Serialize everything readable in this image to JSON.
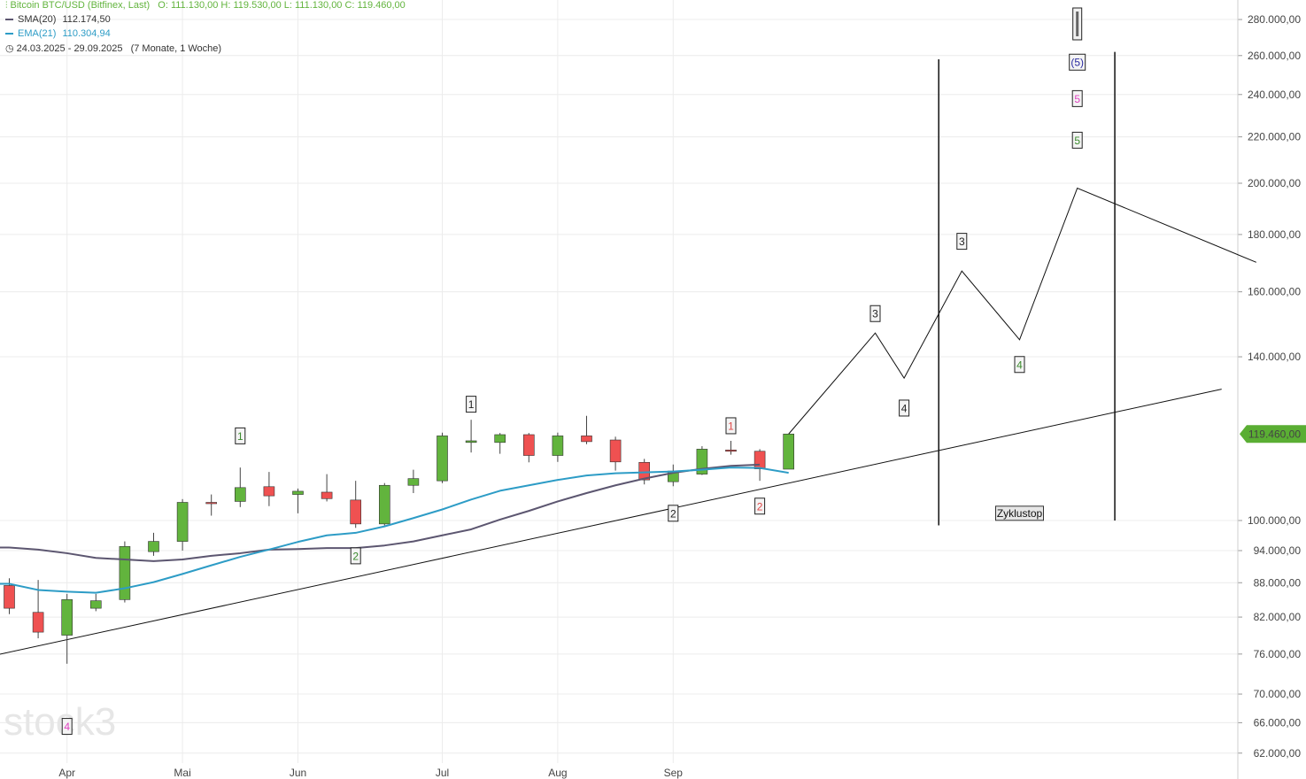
{
  "header": {
    "instrument": "Bitcoin BTC/USD (Bitfinex, Last)",
    "ohlc": "O: 111.130,00   H: 119.530,00   L: 111.130,00   C: 119.460,00",
    "sma_label": "SMA(20)",
    "sma_value": "112.174,50",
    "ema_label": "EMA(21)",
    "ema_value": "110.304,94",
    "period": "24.03.2025 - 29.09.2025",
    "period_note": "(7 Monate, 1 Woche)"
  },
  "colors": {
    "up": "#62b43d",
    "down": "#ef5151",
    "sma": "#5c5670",
    "ema": "#2d9cc6",
    "instrument": "#62b43d",
    "grid": "#ececec",
    "price_tag": "#5aae33"
  },
  "watermark": "stock3",
  "chart_data": {
    "type": "candlestick",
    "scale": "log",
    "ylim": [
      58000,
      300000
    ],
    "y_ticks": [
      62000,
      66000,
      70000,
      76000,
      82000,
      88000,
      94000,
      100000,
      140000,
      160000,
      180000,
      200000,
      220000,
      240000,
      260000,
      280000
    ],
    "y_tick_labels": [
      "62.000,00",
      "66.000,00",
      "70.000,00",
      "76.000,00",
      "82.000,00",
      "88.000,00",
      "94.000,00",
      "100.000,00",
      "140.000,00",
      "160.000,00",
      "180.000,00",
      "200.000,00",
      "220.000,00",
      "240.000,00",
      "260.000,00",
      "280.000,00"
    ],
    "x_labels": [
      {
        "label": "Apr",
        "bar": 2
      },
      {
        "label": "Mai",
        "bar": 6
      },
      {
        "label": "Jun",
        "bar": 10
      },
      {
        "label": "Jul",
        "bar": 15
      },
      {
        "label": "Aug",
        "bar": 19
      },
      {
        "label": "Sep",
        "bar": 23
      }
    ],
    "last_price": 119460,
    "last_price_label": "119.460,00",
    "candles": [
      {
        "o": 87500,
        "h": 88800,
        "l": 82500,
        "c": 83500
      },
      {
        "o": 82800,
        "h": 88500,
        "l": 78500,
        "c": 79500
      },
      {
        "o": 79000,
        "h": 86000,
        "l": 74500,
        "c": 85000
      },
      {
        "o": 83500,
        "h": 86000,
        "l": 83000,
        "c": 84800
      },
      {
        "o": 85000,
        "h": 95800,
        "l": 84500,
        "c": 94800
      },
      {
        "o": 93800,
        "h": 97500,
        "l": 93000,
        "c": 95800
      },
      {
        "o": 95800,
        "h": 104500,
        "l": 94000,
        "c": 103800
      },
      {
        "o": 103800,
        "h": 105500,
        "l": 101000,
        "c": 103600
      },
      {
        "o": 104000,
        "h": 111500,
        "l": 102800,
        "c": 107000
      },
      {
        "o": 107200,
        "h": 110500,
        "l": 103000,
        "c": 105200
      },
      {
        "o": 105500,
        "h": 106800,
        "l": 101500,
        "c": 106200
      },
      {
        "o": 106000,
        "h": 110000,
        "l": 104000,
        "c": 104600
      },
      {
        "o": 104300,
        "h": 108500,
        "l": 98500,
        "c": 99300
      },
      {
        "o": 99300,
        "h": 108000,
        "l": 99000,
        "c": 107500
      },
      {
        "o": 107500,
        "h": 111000,
        "l": 105800,
        "c": 109000
      },
      {
        "o": 108500,
        "h": 119800,
        "l": 108000,
        "c": 119000
      },
      {
        "o": 117400,
        "h": 123000,
        "l": 115000,
        "c": 117800
      },
      {
        "o": 117400,
        "h": 119700,
        "l": 114700,
        "c": 119300
      },
      {
        "o": 119300,
        "h": 119700,
        "l": 112700,
        "c": 114300
      },
      {
        "o": 114300,
        "h": 119800,
        "l": 112800,
        "c": 119000
      },
      {
        "o": 119000,
        "h": 124000,
        "l": 117000,
        "c": 117600
      },
      {
        "o": 118000,
        "h": 118800,
        "l": 110800,
        "c": 112800
      },
      {
        "o": 112700,
        "h": 113500,
        "l": 107700,
        "c": 108700
      },
      {
        "o": 108300,
        "h": 112200,
        "l": 107300,
        "c": 110700
      },
      {
        "o": 110000,
        "h": 116500,
        "l": 109800,
        "c": 115800
      },
      {
        "o": 115600,
        "h": 117800,
        "l": 114500,
        "c": 115300
      },
      {
        "o": 115300,
        "h": 115800,
        "l": 108500,
        "c": 111200
      },
      {
        "o": 111130,
        "h": 119530,
        "l": 111130,
        "c": 119460
      }
    ],
    "series": [
      {
        "name": "SMA(20)",
        "values": [
          94600,
          94200,
          93500,
          92600,
          92300,
          92000,
          92300,
          93000,
          93500,
          94200,
          94300,
          94500,
          94500,
          95000,
          95800,
          97000,
          98200,
          100200,
          102000,
          104000,
          105800,
          107500,
          109000,
          110300,
          111200,
          111900,
          112174
        ]
      },
      {
        "name": "EMA(21)",
        "values": [
          87800,
          86700,
          86400,
          86200,
          87000,
          88100,
          89600,
          91200,
          92800,
          94200,
          95700,
          97000,
          97500,
          98800,
          100500,
          102300,
          104400,
          106300,
          107500,
          108700,
          109700,
          110200,
          110400,
          110600,
          111000,
          111500,
          111400,
          110300
        ]
      }
    ],
    "trendline": {
      "from": [
        -0.5,
        75800
      ],
      "to": [
        42,
        131000
      ]
    },
    "projection": [
      {
        "bar": 27,
        "v": 119460
      },
      {
        "bar": 30,
        "v": 147000
      },
      {
        "bar": 31,
        "v": 134000
      },
      {
        "bar": 33,
        "v": 167000
      },
      {
        "bar": 35,
        "v": 145000
      },
      {
        "bar": 37,
        "v": 198000
      },
      {
        "bar": 43.2,
        "v": 170000
      }
    ],
    "vertical_lines": [
      {
        "bar": 32.2,
        "from": 258000,
        "to": 99000
      },
      {
        "bar": 38.3,
        "from": 262000,
        "to": 100000
      }
    ],
    "markers": [
      {
        "text": "1",
        "bar": 8,
        "v": 119000,
        "color": "#3a8a2c"
      },
      {
        "text": "2",
        "bar": 12,
        "v": 93000,
        "color": "#3a8a2c"
      },
      {
        "text": "1",
        "bar": 16,
        "v": 127000,
        "color": "#222222"
      },
      {
        "text": "2",
        "bar": 23,
        "v": 101500,
        "color": "#222222"
      },
      {
        "text": "1",
        "bar": 25,
        "v": 121500,
        "color": "#e04545"
      },
      {
        "text": "2",
        "bar": 26,
        "v": 103000,
        "color": "#e04545"
      },
      {
        "text": "3",
        "bar": 30,
        "v": 153000,
        "color": "#222222"
      },
      {
        "text": "4",
        "bar": 31,
        "v": 126000,
        "color": "#222222"
      },
      {
        "text": "3",
        "bar": 33,
        "v": 177500,
        "color": "#222222"
      },
      {
        "text": "4",
        "bar": 35,
        "v": 137800,
        "color": "#3a8a2c"
      },
      {
        "text": "5",
        "bar": 37,
        "v": 218500,
        "color": "#3a8a2c"
      },
      {
        "text": "5",
        "bar": 37,
        "v": 238000,
        "color": "#e040c0"
      },
      {
        "text": "(5)",
        "bar": 37,
        "v": 256500,
        "color": "#2a2aa0"
      },
      {
        "text": "4",
        "bar": 2,
        "v": 65500,
        "color": "#e040c0"
      }
    ],
    "annotation": {
      "text": "Zyklustop",
      "bar": 35,
      "v": 101500
    }
  }
}
